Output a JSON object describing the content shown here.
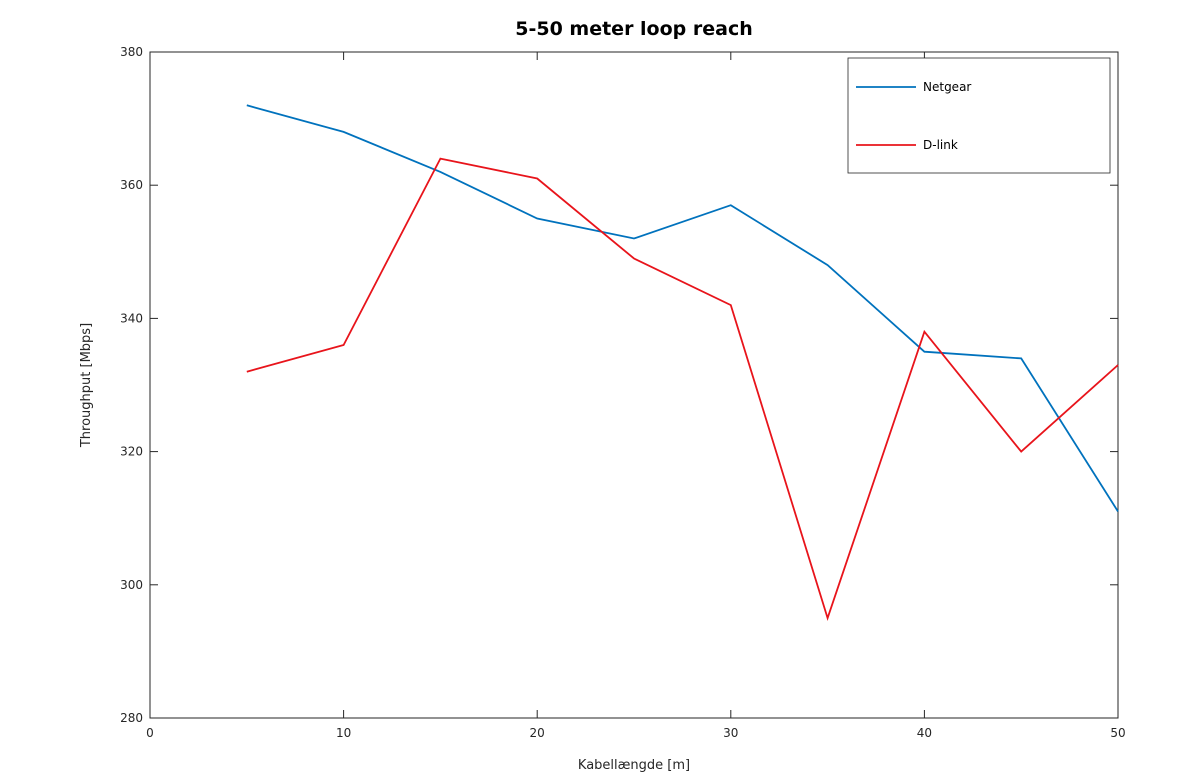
{
  "chart_data": {
    "type": "line",
    "title": "5-50 meter loop reach",
    "xlabel": "Kabellængde [m]",
    "ylabel": "Throughput [Mbps]",
    "xlim": [
      0,
      50
    ],
    "ylim": [
      280,
      380
    ],
    "xticks": [
      0,
      10,
      20,
      30,
      40,
      50
    ],
    "yticks": [
      280,
      300,
      320,
      340,
      360,
      380
    ],
    "grid": false,
    "legend_position": "top-right",
    "x": [
      5,
      10,
      15,
      20,
      25,
      30,
      35,
      40,
      45,
      50
    ],
    "series": [
      {
        "name": "Netgear",
        "color": "#0072bd",
        "values": [
          372,
          368,
          362,
          355,
          352,
          357,
          348,
          335,
          334,
          311
        ]
      },
      {
        "name": "D-link",
        "color": "#e8141b",
        "values": [
          332,
          336,
          364,
          361,
          349,
          342,
          295,
          338,
          320,
          333
        ]
      }
    ]
  }
}
